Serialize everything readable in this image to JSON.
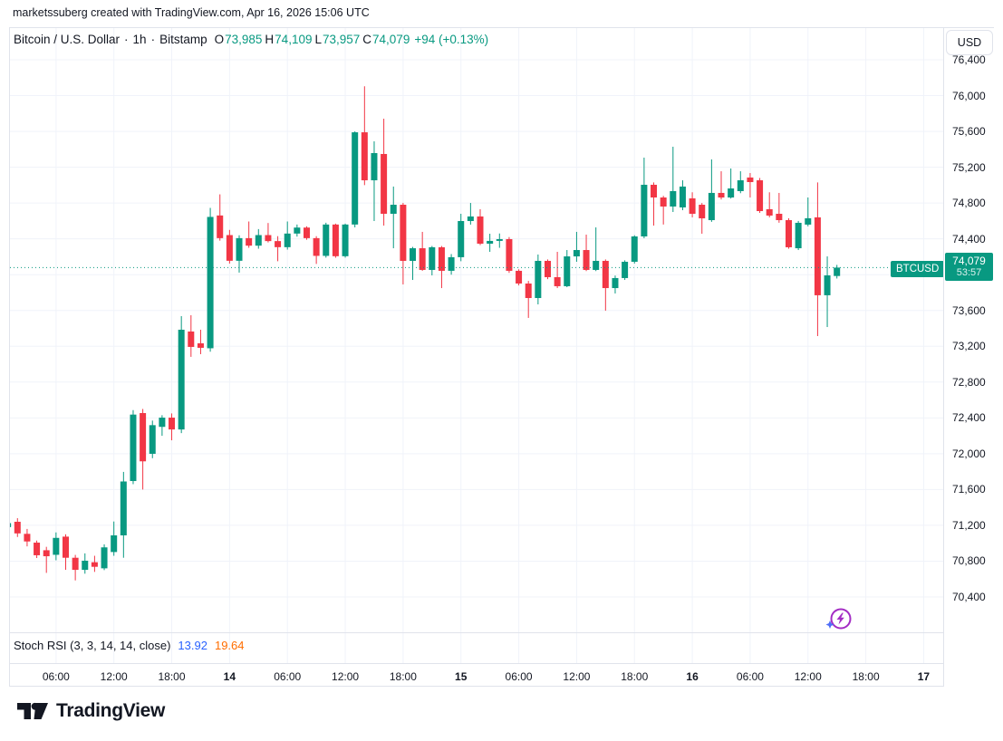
{
  "watermark": "marketssuberg created with TradingView.com, Apr 16, 2026 15:06 UTC",
  "header": {
    "symbol": "Bitcoin / U.S. Dollar",
    "separator": "·",
    "interval": "1h",
    "exchange": "Bitstamp",
    "ohlc": [
      {
        "label": "O",
        "value": "73,985"
      },
      {
        "label": "H",
        "value": "74,109"
      },
      {
        "label": "L",
        "value": "73,957"
      },
      {
        "label": "C",
        "value": "74,079"
      }
    ],
    "change": "+94 (+0.13%)"
  },
  "currency_button": "USD",
  "price_label": {
    "symbol": "BTCUSD",
    "price": "74,079",
    "countdown": "53:57"
  },
  "indicator": {
    "name": "Stoch RSI (3, 3, 14, 14, close)",
    "k_value": "13.92",
    "d_value": "19.64"
  },
  "logo": {
    "text": "TradingView"
  },
  "icons": {
    "boost": "lightning-circle-with-sparkle"
  },
  "colors": {
    "up": "#089981",
    "down": "#F23645",
    "k_blue": "#2962FF",
    "d_orange": "#FF6D00",
    "purple": "#A32CC4",
    "sparkle_blue": "#4F6EF7",
    "text": "#131722",
    "grid": "#F0F3FA",
    "border": "#E0E3EB"
  },
  "chart_data": {
    "type": "candlestick",
    "title": "Bitcoin / U.S. Dollar · 1h · Bitstamp",
    "legend_position": "top-left",
    "grid": true,
    "y_axis": {
      "min": 70400,
      "max": 76400,
      "tick_step": 400,
      "ticks": [
        76400,
        76000,
        75600,
        75200,
        74800,
        74400,
        74000,
        73600,
        73200,
        72800,
        72400,
        72000,
        71600,
        71200,
        70800,
        70400
      ],
      "label_ticks": [
        76400,
        76000,
        75600,
        75200,
        74800,
        74400,
        73600,
        73200,
        72800,
        72400,
        72000,
        71600,
        71200,
        70800,
        70400
      ]
    },
    "x_axis": {
      "ticks": [
        {
          "label": "06:00",
          "emphasis": false
        },
        {
          "label": "12:00",
          "emphasis": false
        },
        {
          "label": "18:00",
          "emphasis": false
        },
        {
          "label": "14",
          "emphasis": true
        },
        {
          "label": "06:00",
          "emphasis": false
        },
        {
          "label": "12:00",
          "emphasis": false
        },
        {
          "label": "18:00",
          "emphasis": false
        },
        {
          "label": "15",
          "emphasis": true
        },
        {
          "label": "06:00",
          "emphasis": false
        },
        {
          "label": "12:00",
          "emphasis": false
        },
        {
          "label": "18:00",
          "emphasis": false
        },
        {
          "label": "16",
          "emphasis": true
        },
        {
          "label": "06:00",
          "emphasis": false
        },
        {
          "label": "12:00",
          "emphasis": false
        },
        {
          "label": "18:00",
          "emphasis": false
        },
        {
          "label": "17",
          "emphasis": true
        }
      ]
    },
    "current_price": 74079,
    "candles_format": [
      "open",
      "high",
      "low",
      "close"
    ],
    "candles": [
      [
        71180,
        71245,
        71160,
        71225
      ],
      [
        71240,
        71280,
        71070,
        71110
      ],
      [
        71105,
        71160,
        70965,
        71020
      ],
      [
        71007,
        71030,
        70835,
        70866
      ],
      [
        70922,
        70960,
        70669,
        70855
      ],
      [
        70871,
        71121,
        70810,
        71060
      ],
      [
        71074,
        71100,
        70703,
        70838
      ],
      [
        70838,
        70870,
        70585,
        70703
      ],
      [
        70703,
        70887,
        70660,
        70805
      ],
      [
        70788,
        70860,
        70680,
        70737
      ],
      [
        70720,
        70988,
        70700,
        70954
      ],
      [
        70902,
        71243,
        70860,
        71088
      ],
      [
        71088,
        71797,
        70838,
        71690
      ],
      [
        71695,
        72487,
        71660,
        72437
      ],
      [
        72454,
        72500,
        71600,
        71915
      ],
      [
        71999,
        72370,
        71950,
        72319
      ],
      [
        72300,
        72430,
        72200,
        72403
      ],
      [
        72403,
        72450,
        72150,
        72271
      ],
      [
        72271,
        73537,
        72230,
        73385
      ],
      [
        73365,
        73547,
        73082,
        73193
      ],
      [
        73233,
        73385,
        73112,
        73183
      ],
      [
        73178,
        74746,
        73140,
        74645
      ],
      [
        74661,
        74897,
        74380,
        74408
      ],
      [
        74442,
        74500,
        74124,
        74155
      ],
      [
        74155,
        74440,
        74023,
        74408
      ],
      [
        74408,
        74594,
        74300,
        74324
      ],
      [
        74324,
        74509,
        74290,
        74442
      ],
      [
        74442,
        74577,
        74360,
        74375
      ],
      [
        74375,
        74430,
        74150,
        74307
      ],
      [
        74307,
        74594,
        74280,
        74459
      ],
      [
        74459,
        74560,
        74425,
        74526
      ],
      [
        74526,
        74540,
        74390,
        74408
      ],
      [
        74408,
        74430,
        74120,
        74210
      ],
      [
        74210,
        74580,
        74190,
        74560
      ],
      [
        74560,
        74570,
        74189,
        74206
      ],
      [
        74206,
        74570,
        74190,
        74560
      ],
      [
        74560,
        75600,
        74528,
        75590
      ],
      [
        75590,
        76104,
        75000,
        75054
      ],
      [
        75054,
        75489,
        74599,
        75358
      ],
      [
        75348,
        75742,
        74548,
        74680
      ],
      [
        74680,
        74984,
        74295,
        74781
      ],
      [
        74781,
        74801,
        73891,
        74154
      ],
      [
        74154,
        74310,
        73941,
        74295
      ],
      [
        74295,
        74478,
        74043,
        74053
      ],
      [
        74053,
        74320,
        73992,
        74306
      ],
      [
        74306,
        74320,
        73850,
        74043
      ],
      [
        74043,
        74230,
        74000,
        74195
      ],
      [
        74195,
        74680,
        74150,
        74599
      ],
      [
        74599,
        74801,
        74559,
        74650
      ],
      [
        74650,
        74731,
        74330,
        74346
      ],
      [
        74346,
        74457,
        74255,
        74377
      ],
      [
        74377,
        74460,
        74300,
        74397
      ],
      [
        74397,
        74420,
        74020,
        74043
      ],
      [
        74043,
        74060,
        73880,
        73901
      ],
      [
        73901,
        73930,
        73517,
        73739
      ],
      [
        73739,
        74225,
        73668,
        74154
      ],
      [
        74154,
        74170,
        73950,
        73972
      ],
      [
        73972,
        74255,
        73850,
        73871
      ],
      [
        73871,
        74275,
        73860,
        74204
      ],
      [
        74204,
        74478,
        74144,
        74275
      ],
      [
        74275,
        74447,
        74040,
        74053
      ],
      [
        74053,
        74528,
        74040,
        74154
      ],
      [
        74154,
        74170,
        73598,
        73850
      ],
      [
        73850,
        73990,
        73790,
        73962
      ],
      [
        73962,
        74160,
        73941,
        74144
      ],
      [
        74144,
        74440,
        74124,
        74427
      ],
      [
        74427,
        75307,
        74407,
        75004
      ],
      [
        75004,
        75030,
        74548,
        74862
      ],
      [
        74862,
        74880,
        74560,
        74761
      ],
      [
        74761,
        75429,
        74700,
        74933
      ],
      [
        74751,
        75054,
        74720,
        74984
      ],
      [
        74852,
        74920,
        74640,
        74680
      ],
      [
        74781,
        74800,
        74457,
        74629
      ],
      [
        74609,
        75287,
        74590,
        74913
      ],
      [
        74913,
        75155,
        74840,
        74862
      ],
      [
        74862,
        75186,
        74850,
        74963
      ],
      [
        74933,
        75155,
        74910,
        75054
      ],
      [
        75085,
        75135,
        74862,
        75034
      ],
      [
        75054,
        75080,
        74690,
        74710
      ],
      [
        74731,
        74920,
        74640,
        74660
      ],
      [
        74680,
        74913,
        74580,
        74609
      ],
      [
        74609,
        74630,
        74290,
        74306
      ],
      [
        74295,
        74600,
        74275,
        74579
      ],
      [
        74559,
        74862,
        74540,
        74630
      ],
      [
        74640,
        75030,
        73314,
        73770
      ],
      [
        73770,
        74204,
        73415,
        73992
      ],
      [
        73985,
        74109,
        73957,
        74079
      ]
    ]
  }
}
